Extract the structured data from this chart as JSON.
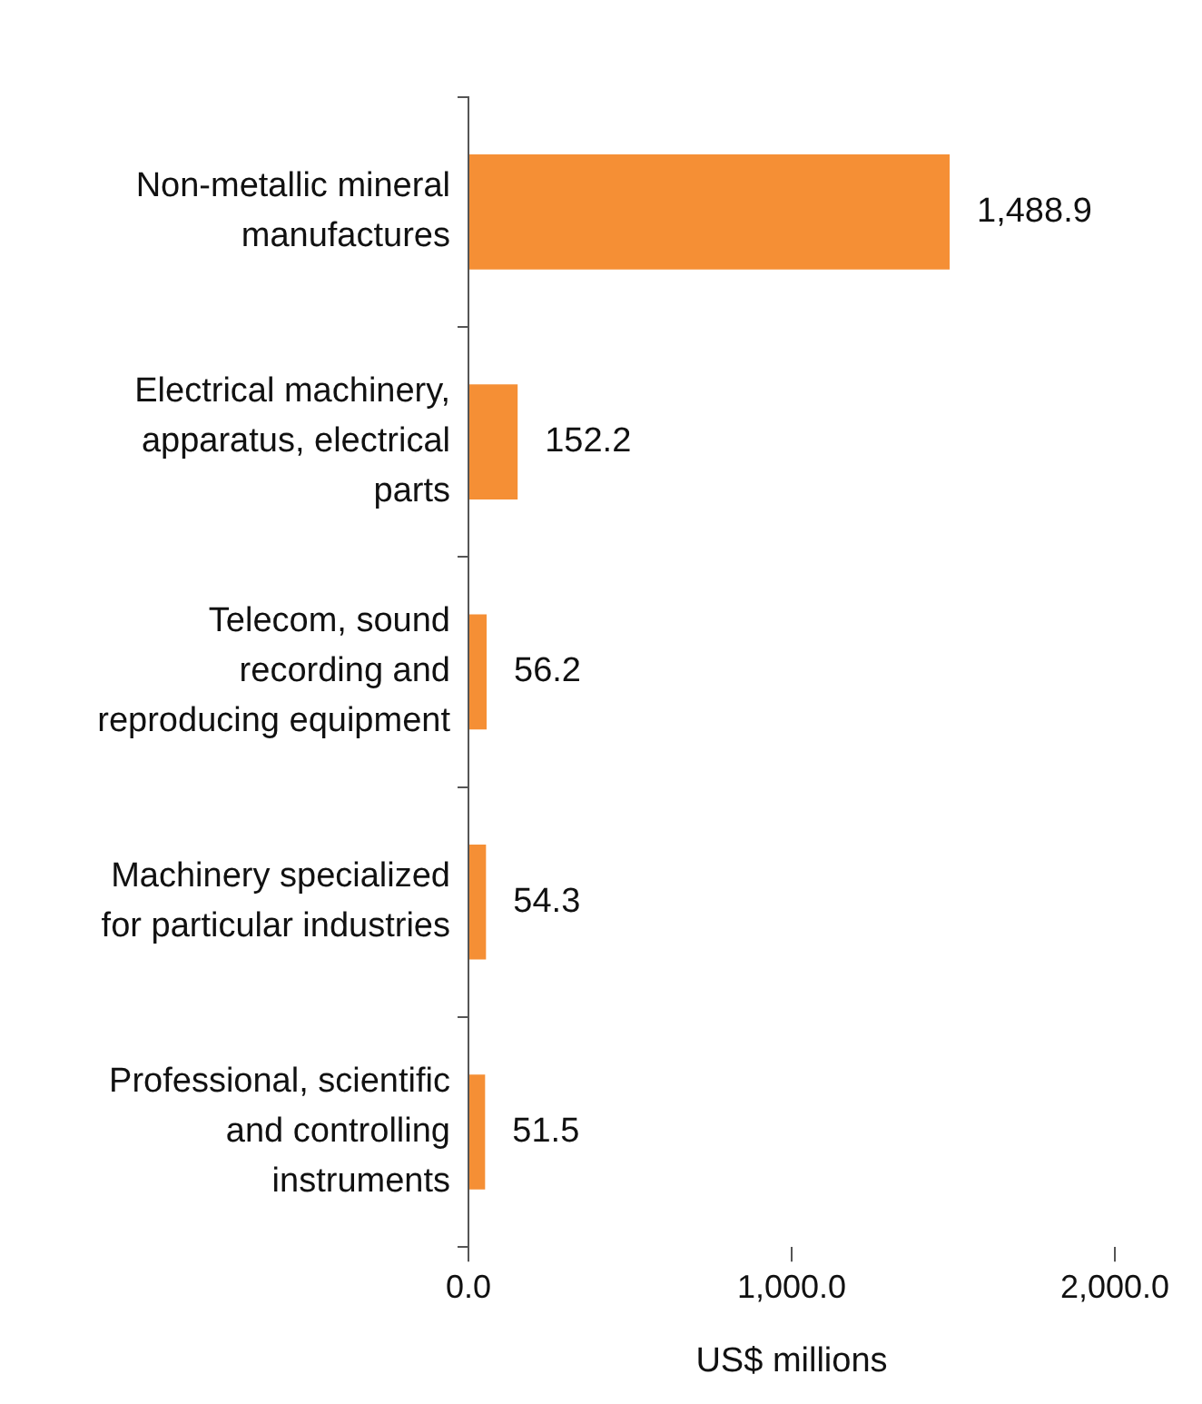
{
  "chart_data": {
    "type": "bar",
    "orientation": "horizontal",
    "xlabel": "US$ millions",
    "categories": [
      "Non-metallic mineral manufactures",
      "Electrical machinery, apparatus, electrical parts",
      "Telecom, sound recording and reproducing equipment",
      "Machinery specialized for particular industries",
      "Professional, scientific and controlling instruments"
    ],
    "values": [
      1488.9,
      152.2,
      56.2,
      54.3,
      51.5
    ],
    "color": "#f58f35",
    "value_labels": [
      "1,488.9",
      "152.2",
      "56.2",
      "54.3",
      "51.5"
    ],
    "xlim": [
      0,
      2000
    ],
    "xticks": [
      {
        "value": 0,
        "label": "0.0"
      },
      {
        "value": 1000,
        "label": "1,000.0"
      },
      {
        "value": 2000,
        "label": "2,000.0"
      }
    ],
    "grid": false,
    "legend": false
  }
}
